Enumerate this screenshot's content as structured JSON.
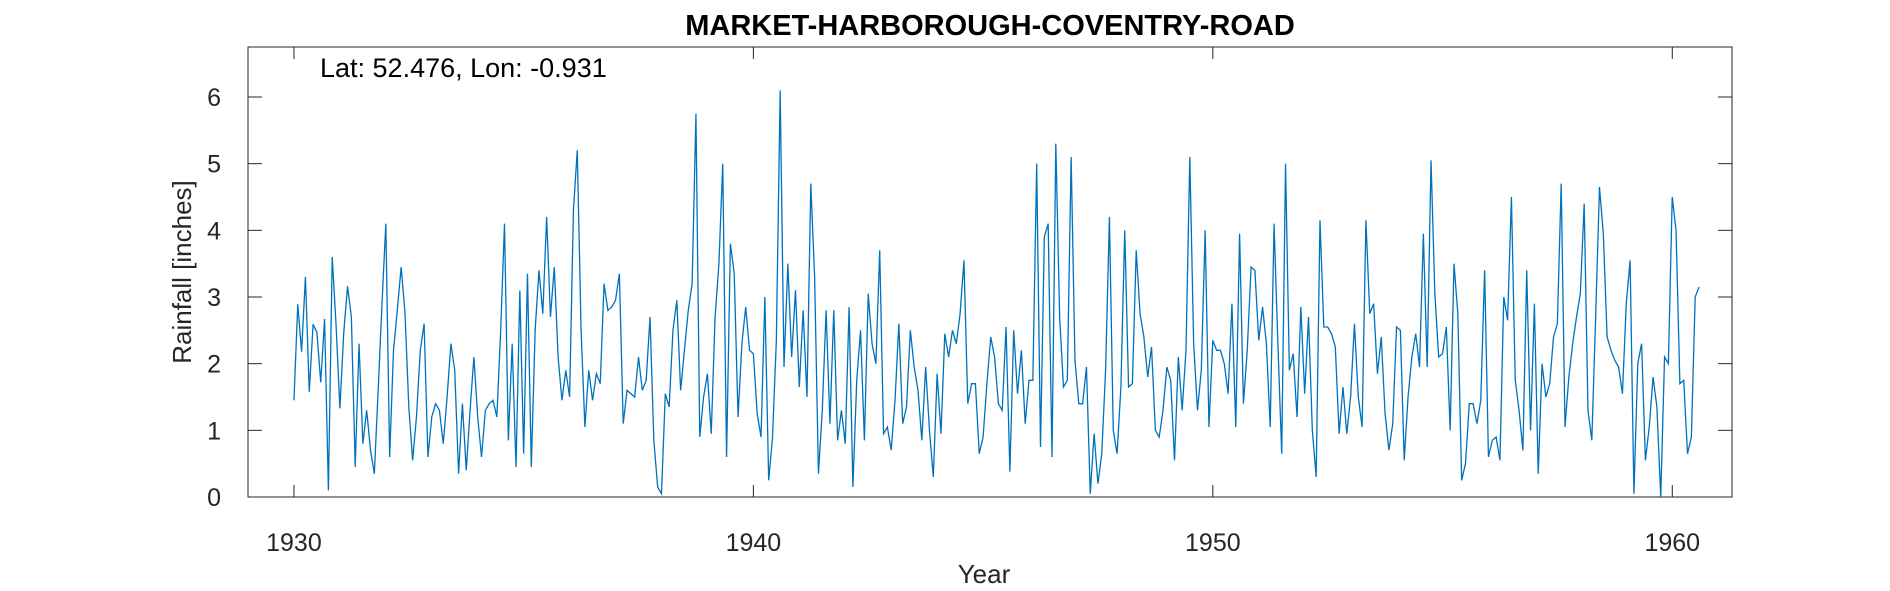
{
  "chart_data": {
    "type": "line",
    "title": "MARKET-HARBOROUGH-COVENTRY-ROAD",
    "xlabel": "Year",
    "ylabel": "Rainfall [inches]",
    "annotation": "Lat: 52.476, Lon: -0.931",
    "xlim": [
      1929,
      1961.3
    ],
    "ylim": [
      0,
      6.75
    ],
    "x_ticks": [
      1930,
      1940,
      1950,
      1960
    ],
    "y_ticks": [
      0,
      1,
      2,
      3,
      4,
      5,
      6
    ],
    "x_tick_labels": [
      "1930",
      "1940",
      "1950",
      "1960"
    ],
    "y_tick_labels": [
      "0",
      "1",
      "2",
      "3",
      "4",
      "5",
      "6"
    ],
    "grid": false,
    "line_color": "#0072BD",
    "series": [
      {
        "x_start": 1930.0,
        "x_step": 0.08333,
        "values": [
          1.45,
          2.89,
          2.18,
          3.3,
          1.58,
          2.59,
          2.47,
          1.72,
          2.67,
          0.1,
          3.6,
          2.58,
          1.33,
          2.46,
          3.16,
          2.7,
          0.45,
          2.3,
          0.8,
          1.3,
          0.7,
          0.35,
          1.6,
          2.9,
          4.1,
          0.6,
          2.2,
          2.8,
          3.45,
          2.77,
          1.35,
          0.55,
          1.2,
          2.2,
          2.6,
          0.6,
          1.2,
          1.4,
          1.3,
          0.8,
          1.5,
          2.3,
          1.9,
          0.35,
          1.4,
          0.4,
          1.3,
          2.1,
          1.2,
          0.6,
          1.3,
          1.4,
          1.45,
          1.2,
          2.5,
          4.1,
          0.85,
          2.3,
          0.45,
          3.1,
          0.65,
          3.35,
          0.45,
          2.5,
          3.4,
          2.75,
          4.2,
          2.7,
          3.45,
          2.1,
          1.45,
          1.9,
          1.5,
          4.3,
          5.2,
          2.5,
          1.05,
          1.9,
          1.45,
          1.85,
          1.7,
          3.2,
          2.8,
          2.85,
          2.95,
          3.35,
          1.1,
          1.6,
          1.55,
          1.5,
          2.1,
          1.6,
          1.75,
          2.7,
          0.85,
          0.15,
          0.05,
          1.55,
          1.35,
          2.5,
          2.95,
          1.6,
          2.2,
          2.8,
          3.2,
          5.75,
          0.9,
          1.5,
          1.85,
          0.95,
          2.7,
          3.5,
          5.0,
          0.6,
          3.8,
          3.35,
          1.2,
          2.3,
          2.85,
          2.2,
          2.15,
          1.25,
          0.9,
          3.0,
          0.25,
          0.9,
          2.35,
          6.1,
          1.95,
          3.5,
          2.1,
          3.1,
          1.65,
          2.8,
          1.5,
          4.7,
          3.3,
          0.35,
          1.3,
          2.8,
          1.1,
          2.8,
          0.85,
          1.3,
          0.8,
          2.85,
          0.15,
          1.75,
          2.5,
          0.85,
          3.05,
          2.3,
          2.0,
          3.7,
          0.95,
          1.05,
          0.7,
          1.45,
          2.6,
          1.1,
          1.35,
          2.5,
          1.95,
          1.6,
          0.85,
          1.95,
          1.0,
          0.3,
          1.85,
          0.95,
          2.45,
          2.1,
          2.5,
          2.3,
          2.75,
          3.55,
          1.4,
          1.7,
          1.7,
          0.65,
          0.9,
          1.7,
          2.4,
          2.1,
          1.4,
          1.3,
          2.55,
          0.38,
          2.5,
          1.55,
          2.2,
          1.1,
          1.75,
          1.75,
          5.0,
          0.75,
          3.9,
          4.1,
          0.6,
          5.3,
          2.7,
          1.65,
          1.75,
          5.1,
          2.05,
          1.4,
          1.4,
          1.95,
          0.05,
          0.95,
          0.2,
          0.65,
          1.9,
          4.2,
          1.0,
          0.65,
          1.65,
          4.0,
          1.65,
          1.7,
          3.7,
          2.75,
          2.4,
          1.8,
          2.25,
          1.0,
          0.9,
          1.3,
          1.95,
          1.75,
          0.55,
          2.1,
          1.3,
          2.2,
          5.1,
          2.3,
          1.3,
          1.9,
          4.0,
          1.05,
          2.35,
          2.2,
          2.2,
          2.0,
          1.55,
          2.9,
          1.05,
          3.95,
          1.4,
          2.2,
          3.45,
          3.4,
          2.35,
          2.85,
          2.3,
          1.05,
          4.1,
          2.3,
          0.65,
          5.0,
          1.9,
          2.15,
          1.2,
          2.85,
          1.55,
          2.7,
          1.0,
          0.3,
          4.15,
          2.55,
          2.55,
          2.45,
          2.25,
          0.95,
          1.65,
          0.95,
          1.5,
          2.6,
          1.5,
          1.05,
          4.15,
          2.75,
          2.9,
          1.85,
          2.4,
          1.25,
          0.7,
          1.1,
          2.55,
          2.5,
          0.55,
          1.5,
          2.1,
          2.45,
          1.95,
          3.95,
          1.95,
          5.05,
          3.05,
          2.1,
          2.15,
          2.55,
          1.0,
          3.5,
          2.75,
          0.25,
          0.5,
          1.4,
          1.4,
          1.1,
          1.45,
          3.4,
          0.6,
          0.85,
          0.9,
          0.55,
          3.0,
          2.65,
          4.5,
          1.75,
          1.3,
          0.7,
          3.4,
          1.0,
          2.9,
          0.35,
          2.0,
          1.5,
          1.7,
          2.4,
          2.6,
          4.7,
          1.05,
          1.8,
          2.3,
          2.7,
          3.05,
          4.4,
          1.3,
          0.85,
          2.7,
          4.65,
          3.95,
          2.4,
          2.2,
          2.05,
          1.95,
          1.55,
          2.9,
          3.55,
          0.05,
          2.0,
          2.3,
          0.55,
          1.05,
          1.8,
          1.35,
          0.0,
          2.1,
          2.0,
          4.5,
          4.0,
          1.7,
          1.75,
          0.65,
          0.9,
          3.0,
          3.15
        ]
      }
    ]
  }
}
